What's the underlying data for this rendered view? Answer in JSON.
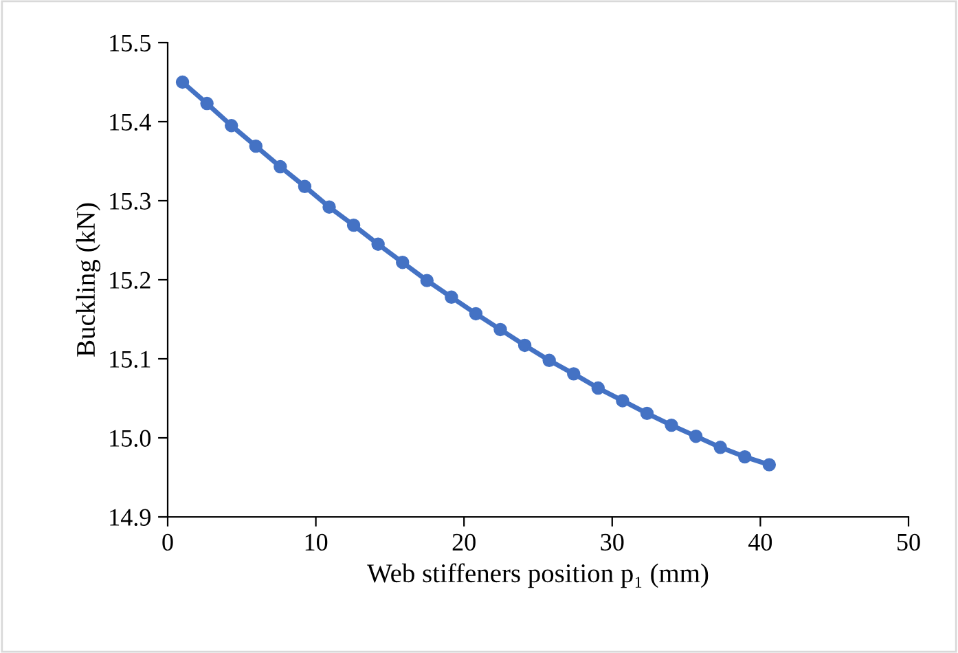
{
  "chart_data": {
    "type": "line",
    "xlabel": "Web stiffeners position p₁ (mm)",
    "ylabel": "Buckling (kN)",
    "x": [
      1,
      2.65,
      4.3,
      5.95,
      7.6,
      9.25,
      10.9,
      12.55,
      14.2,
      15.85,
      17.5,
      19.15,
      20.8,
      22.45,
      24.1,
      25.75,
      27.4,
      29.05,
      30.7,
      32.35,
      34,
      35.65,
      37.3,
      38.95,
      40.6
    ],
    "series": [
      {
        "color": "#4472c4",
        "values": [
          15.45,
          15.423,
          15.395,
          15.369,
          15.343,
          15.318,
          15.292,
          15.269,
          15.245,
          15.222,
          15.199,
          15.178,
          15.157,
          15.137,
          15.117,
          15.098,
          15.081,
          15.063,
          15.047,
          15.031,
          15.016,
          15.002,
          14.988,
          14.976,
          14.966
        ]
      }
    ],
    "xlim": [
      0,
      50
    ],
    "xticks": [
      0,
      10,
      20,
      30,
      40,
      50
    ],
    "ylim": [
      14.9,
      15.5
    ],
    "yticks": [
      14.9,
      {
        "value": 15.0,
        "label": "15.0"
      },
      15.1,
      15.2,
      15.3,
      15.4,
      15.5
    ],
    "grid": false,
    "legend": false,
    "marker": "circle",
    "line_style": "solid"
  }
}
